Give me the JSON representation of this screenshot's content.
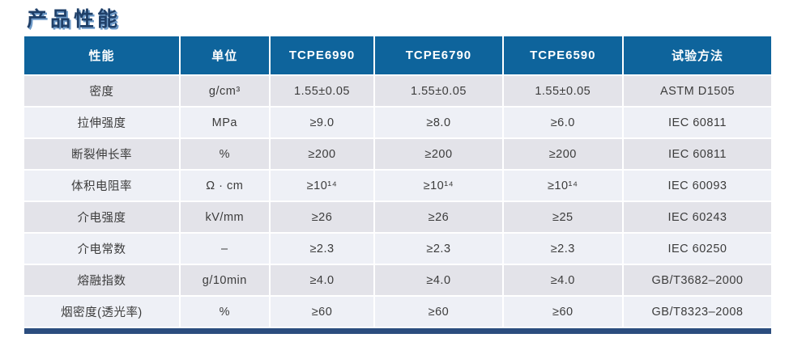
{
  "title": "产品性能",
  "colors": {
    "header_bg": "#0e649c",
    "row_odd": "#e3e3e9",
    "row_even": "#eef0f6",
    "bottom_bar": "#2b4d7e",
    "title": "#1f3f68",
    "title_shadow": "#6f9bc9"
  },
  "chart_data": {
    "type": "table",
    "title": "产品性能",
    "columns": [
      "性能",
      "单位",
      "TCPE6990",
      "TCPE6790",
      "TCPE6590",
      "试验方法"
    ],
    "rows": [
      [
        "密度",
        "g/cm³",
        "1.55±0.05",
        "1.55±0.05",
        "1.55±0.05",
        "ASTM D1505"
      ],
      [
        "拉伸强度",
        "MPa",
        "≥9.0",
        "≥8.0",
        "≥6.0",
        "IEC 60811"
      ],
      [
        "断裂伸长率",
        "%",
        "≥200",
        "≥200",
        "≥200",
        "IEC 60811"
      ],
      [
        "体积电阻率",
        "Ω · cm",
        "≥10¹⁴",
        "≥10¹⁴",
        "≥10¹⁴",
        "IEC 60093"
      ],
      [
        "介电强度",
        "kV/mm",
        "≥26",
        "≥26",
        "≥25",
        "IEC 60243"
      ],
      [
        "介电常数",
        "–",
        "≥2.3",
        "≥2.3",
        "≥2.3",
        "IEC 60250"
      ],
      [
        "熔融指数",
        "g/10min",
        "≥4.0",
        "≥4.0",
        "≥4.0",
        "GB/T3682–2000"
      ],
      [
        "烟密度(透光率)",
        "%",
        "≥60",
        "≥60",
        "≥60",
        "GB/T8323–2008"
      ]
    ]
  }
}
